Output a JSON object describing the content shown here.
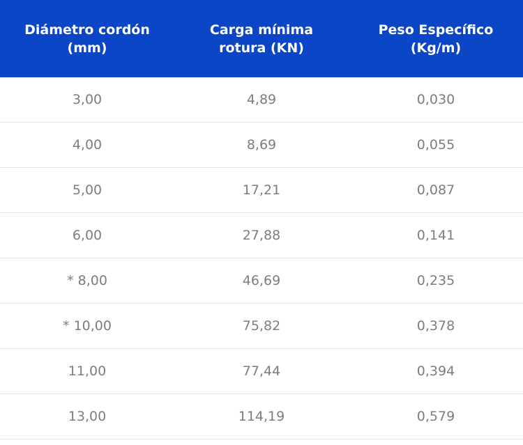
{
  "table": {
    "headers": [
      [
        "Diámetro cordón",
        "(mm)"
      ],
      [
        "Carga mínima",
        "rotura (KN)"
      ],
      [
        "Peso Específico",
        "(Kg/m)"
      ]
    ],
    "rows": [
      [
        "3,00",
        "4,89",
        "0,030"
      ],
      [
        "4,00",
        "8,69",
        "0,055"
      ],
      [
        "5,00",
        "17,21",
        "0,087"
      ],
      [
        "6,00",
        "27,88",
        "0,141"
      ],
      [
        "* 8,00",
        "46,69",
        "0,235"
      ],
      [
        "* 10,00",
        "75,82",
        "0,378"
      ],
      [
        "11,00",
        "77,44",
        "0,394"
      ],
      [
        "13,00",
        "114,19",
        "0,579"
      ]
    ]
  },
  "colors": {
    "header_bg": "#0a46c6",
    "header_text": "#ffffff",
    "cell_text": "#7d7d7d",
    "row_border": "#e2e2e2"
  }
}
